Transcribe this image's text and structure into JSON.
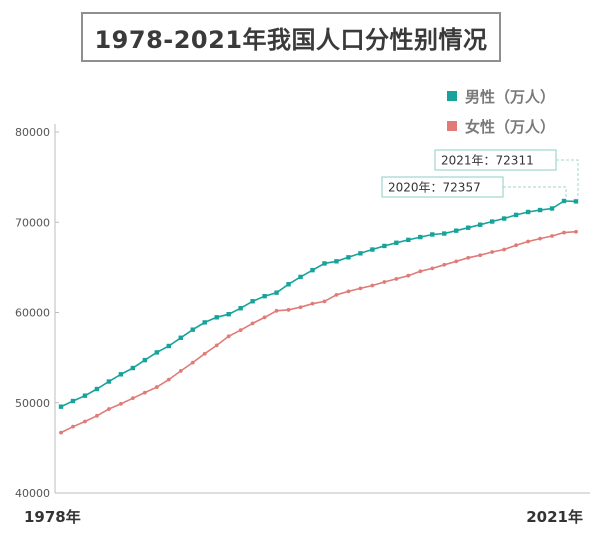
{
  "title": "1978-2021年我国人口分性别情况",
  "colors": {
    "male": "#17a39b",
    "female": "#e07b78",
    "axis": "#bdbdbd",
    "title_border": "#8f8f8f",
    "annotation_border": "#9fd6cf"
  },
  "chart_data": {
    "type": "line",
    "title": "1978-2021年我国人口分性别情况",
    "x_start_label": "1978年",
    "x_end_label": "2021年",
    "x": [
      1978,
      1979,
      1980,
      1981,
      1982,
      1983,
      1984,
      1985,
      1986,
      1987,
      1988,
      1989,
      1990,
      1991,
      1992,
      1993,
      1994,
      1995,
      1996,
      1997,
      1998,
      1999,
      2000,
      2001,
      2002,
      2003,
      2004,
      2005,
      2006,
      2007,
      2008,
      2009,
      2010,
      2011,
      2012,
      2013,
      2014,
      2015,
      2016,
      2017,
      2018,
      2019,
      2020,
      2021
    ],
    "ylim": [
      40000,
      80000
    ],
    "yticks": [
      "40000",
      "50000",
      "60000",
      "70000",
      "80000"
    ],
    "legend_position": "top-right",
    "grid": false,
    "series": [
      {
        "name": "男性（万人）",
        "color": "#17a39b",
        "values": [
          49567,
          50192,
          50785,
          51519,
          52352,
          53152,
          53848,
          54725,
          55581,
          56290,
          57201,
          58099,
          58904,
          59466,
          59811,
          60472,
          61246,
          61808,
          62200,
          63131,
          63940,
          64692,
          65437,
          65672,
          66115,
          66556,
          66976,
          67375,
          67728,
          68048,
          68357,
          68647,
          68748,
          69068,
          69395,
          69728,
          70079,
          70414,
          70815,
          71137,
          71351,
          71527,
          72357,
          72311
        ]
      },
      {
        "name": "女性（万人）",
        "color": "#e07b78",
        "values": [
          46692,
          47350,
          47920,
          48553,
          49302,
          49874,
          50509,
          51126,
          51738,
          52564,
          53525,
          54446,
          55433,
          56357,
          57360,
          58045,
          58796,
          59460,
          60189,
          60297,
          60584,
          60977,
          61228,
          61956,
          62338,
          62670,
          62991,
          63381,
          63720,
          64081,
          64565,
          64886,
          65287,
          65667,
          66061,
          66344,
          66703,
          66976,
          67456,
          67871,
          68187,
          68478,
          68855,
          68949
        ]
      }
    ],
    "annotations": [
      {
        "label": "2021年：72311",
        "year": 2021,
        "value": 72311
      },
      {
        "label": "2020年：72357",
        "year": 2020,
        "value": 72357
      }
    ]
  }
}
